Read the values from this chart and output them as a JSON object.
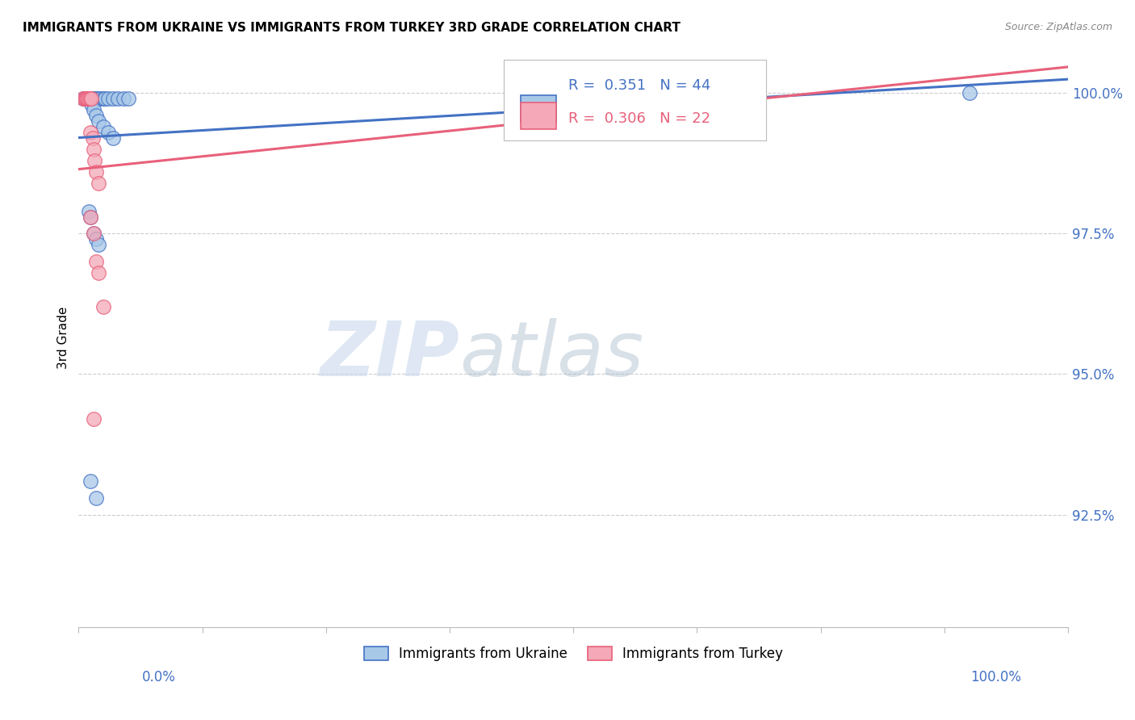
{
  "title": "IMMIGRANTS FROM UKRAINE VS IMMIGRANTS FROM TURKEY 3RD GRADE CORRELATION CHART",
  "source": "Source: ZipAtlas.com",
  "ylabel": "3rd Grade",
  "ytick_labels": [
    "92.5%",
    "95.0%",
    "97.5%",
    "100.0%"
  ],
  "ytick_values": [
    0.925,
    0.95,
    0.975,
    1.0
  ],
  "xlim": [
    0.0,
    1.0
  ],
  "ylim": [
    0.905,
    1.008
  ],
  "ukraine_color": "#A8C8E8",
  "turkey_color": "#F4A8B8",
  "ukraine_line_color": "#4472C4",
  "turkey_line_color": "#E8607A",
  "ukraine_scatter_x": [
    0.005,
    0.006,
    0.007,
    0.007,
    0.008,
    0.008,
    0.009,
    0.01,
    0.01,
    0.011,
    0.012,
    0.012,
    0.013,
    0.013,
    0.014,
    0.015,
    0.016,
    0.017,
    0.018,
    0.02,
    0.022,
    0.025,
    0.027,
    0.03,
    0.035,
    0.04,
    0.045,
    0.05,
    0.013,
    0.015,
    0.018,
    0.02,
    0.025,
    0.03,
    0.035,
    0.01,
    0.012,
    0.015,
    0.018,
    0.02,
    0.012,
    0.018,
    0.65,
    0.9
  ],
  "ukraine_scatter_y": [
    0.999,
    0.999,
    0.999,
    0.999,
    0.999,
    0.999,
    0.999,
    0.999,
    0.999,
    0.999,
    0.999,
    0.999,
    0.999,
    0.999,
    0.999,
    0.999,
    0.999,
    0.999,
    0.999,
    0.999,
    0.999,
    0.999,
    0.999,
    0.999,
    0.999,
    0.999,
    0.999,
    0.999,
    0.998,
    0.997,
    0.996,
    0.995,
    0.994,
    0.993,
    0.992,
    0.979,
    0.978,
    0.975,
    0.974,
    0.973,
    0.931,
    0.928,
    1.0,
    1.0
  ],
  "turkey_scatter_x": [
    0.005,
    0.006,
    0.007,
    0.008,
    0.009,
    0.01,
    0.01,
    0.012,
    0.013,
    0.012,
    0.014,
    0.015,
    0.016,
    0.018,
    0.02,
    0.012,
    0.015,
    0.018,
    0.02,
    0.025,
    0.015,
    0.65
  ],
  "turkey_scatter_y": [
    0.999,
    0.999,
    0.999,
    0.999,
    0.999,
    0.999,
    0.999,
    0.999,
    0.999,
    0.993,
    0.992,
    0.99,
    0.988,
    0.986,
    0.984,
    0.978,
    0.975,
    0.97,
    0.968,
    0.962,
    0.942,
    1.0
  ],
  "watermark_zip": "ZIP",
  "watermark_atlas": "atlas",
  "background_color": "#FFFFFF",
  "title_fontsize": 11,
  "axis_label_color": "#4472C4",
  "grid_color": "#CCCCCC",
  "legend_r_ukraine": "R =  0.351",
  "legend_n_ukraine": "N = 44",
  "legend_r_turkey": "R =  0.306",
  "legend_n_turkey": "N = 22",
  "legend_ukraine_label": "Immigrants from Ukraine",
  "legend_turkey_label": "Immigrants from Turkey"
}
